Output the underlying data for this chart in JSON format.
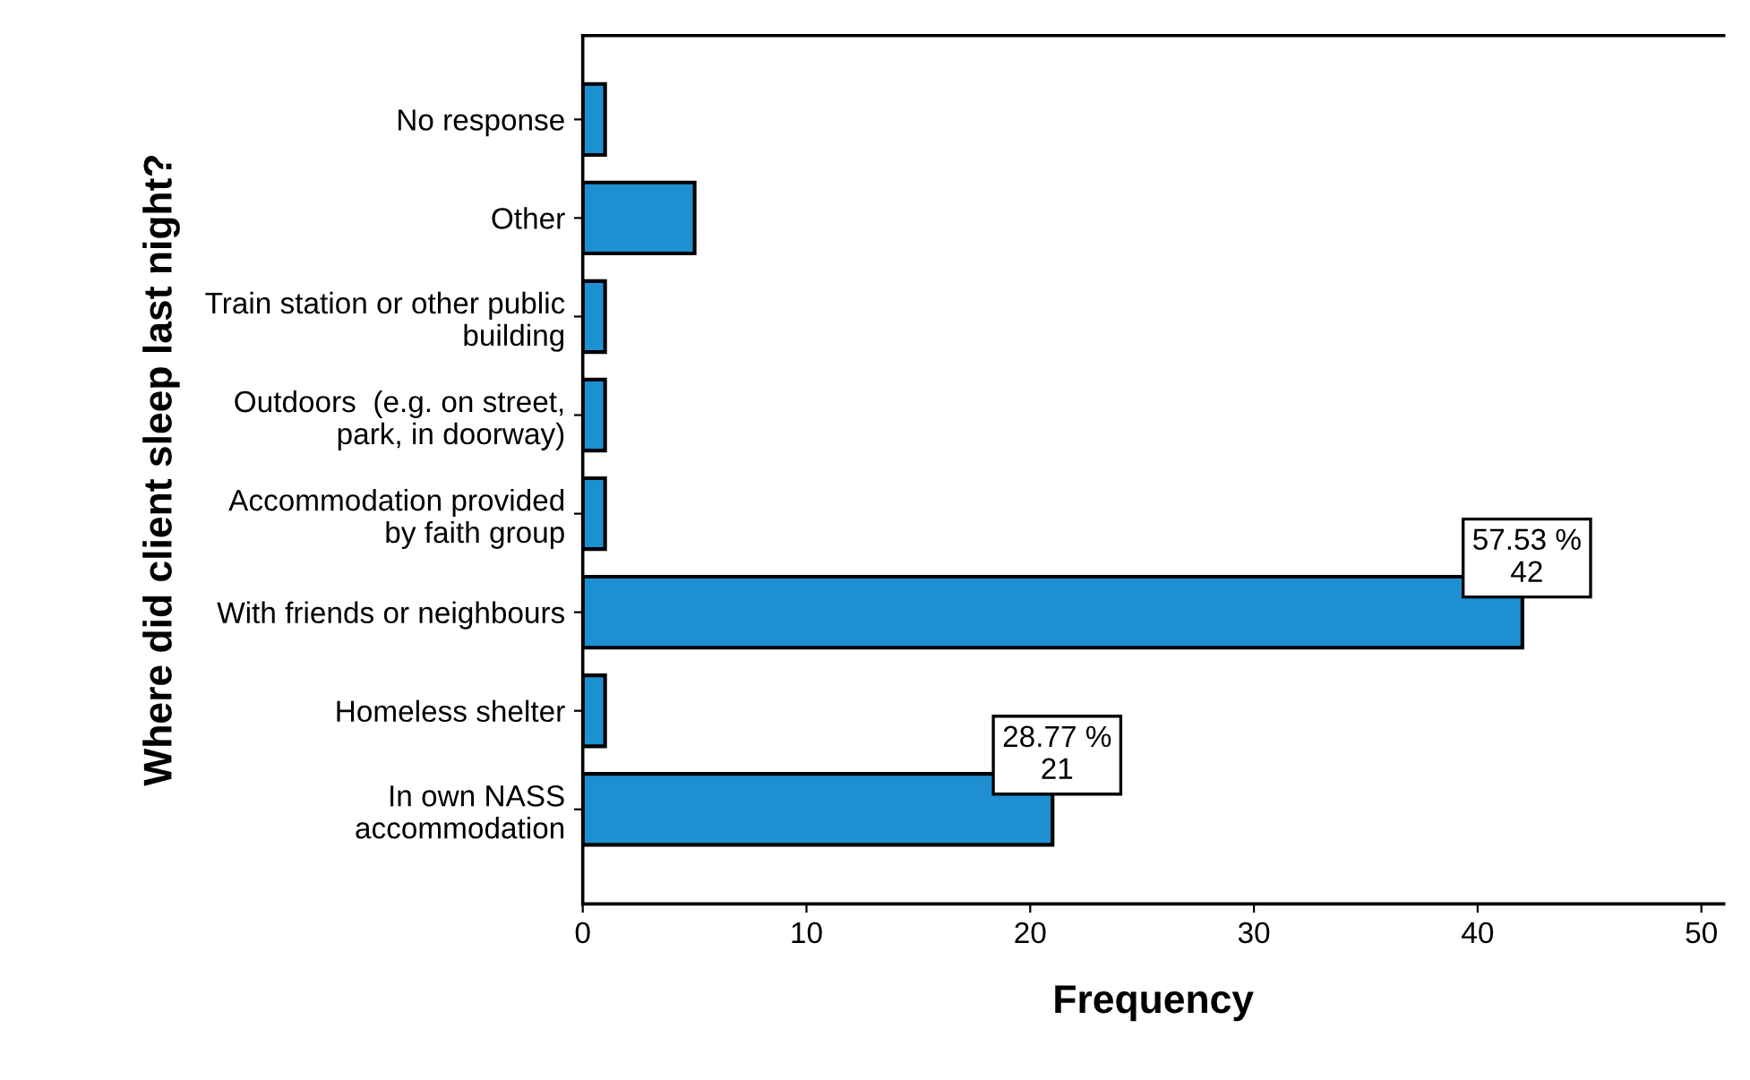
{
  "chart_data": {
    "type": "bar",
    "orientation": "horizontal",
    "xlabel": "Frequency",
    "ylabel": "Where did client sleep last night?",
    "categories": [
      "No response",
      "Other",
      "Train station or other public\nbuilding",
      "Outdoors  (e.g. on street,\npark, in doorway)",
      "Accommodation provided\nby faith group",
      "With friends or neighbours",
      "Homeless shelter",
      "In own NASS\naccommodation"
    ],
    "values": [
      1,
      5,
      1,
      1,
      1,
      42,
      1,
      21
    ],
    "value_labels": [
      null,
      null,
      null,
      null,
      null,
      "57.53 %\n42",
      null,
      "28.77 %\n21"
    ],
    "color": "#1e90d2",
    "xlim": [
      0,
      51
    ],
    "xticks": [
      0,
      10,
      20,
      30,
      40,
      50
    ],
    "grid": false,
    "legend": false
  }
}
